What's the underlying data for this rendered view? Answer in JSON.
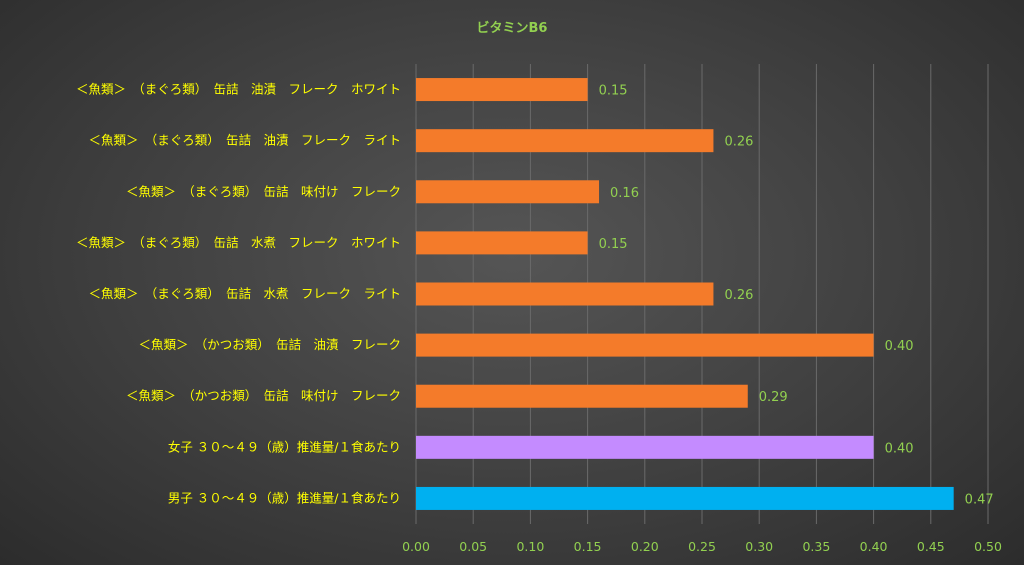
{
  "chart_data": {
    "type": "bar",
    "orientation": "horizontal",
    "title": "ビタミンB6",
    "categories": [
      "＜魚類＞　（まぐろ類）　缶詰　油漬　フレーク　ホワイト",
      "＜魚類＞　（まぐろ類）　缶詰　油漬　フレーク　ライト",
      "＜魚類＞　（まぐろ類）　缶詰　味付け　フレーク",
      "＜魚類＞　（まぐろ類）　缶詰　水煮　フレーク　ホワイト",
      "＜魚類＞　（まぐろ類）　缶詰　水煮　フレーク　ライト",
      "＜魚類＞　（かつお類）　缶詰　油漬　フレーク",
      "＜魚類＞　（かつお類）　缶詰　味付け　フレーク",
      "女子 ３０～４９（歳）推進量/１食あたり",
      "男子 ３０～４９（歳）推進量/１食あたり"
    ],
    "values": [
      0.15,
      0.26,
      0.16,
      0.15,
      0.26,
      0.4,
      0.29,
      0.4,
      0.47
    ],
    "value_labels": [
      "0.15",
      "0.26",
      "0.16",
      "0.15",
      "0.26",
      "0.40",
      "0.29",
      "0.40",
      "0.47"
    ],
    "bar_colors": [
      "#F47B2A",
      "#F47B2A",
      "#F47B2A",
      "#F47B2A",
      "#F47B2A",
      "#F47B2A",
      "#F47B2A",
      "#C48BFF",
      "#00B0F0"
    ],
    "xlim": [
      0,
      0.5
    ],
    "xticks": [
      "0.00",
      "0.05",
      "0.10",
      "0.15",
      "0.20",
      "0.25",
      "0.30",
      "0.35",
      "0.40",
      "0.45",
      "0.50"
    ],
    "grid": true,
    "legend": "none",
    "colors": {
      "title": "#92D050",
      "category_label": "#FFFF00",
      "value_label": "#92D050",
      "tick_label": "#92D050",
      "grid": "#6a6a6a"
    }
  }
}
